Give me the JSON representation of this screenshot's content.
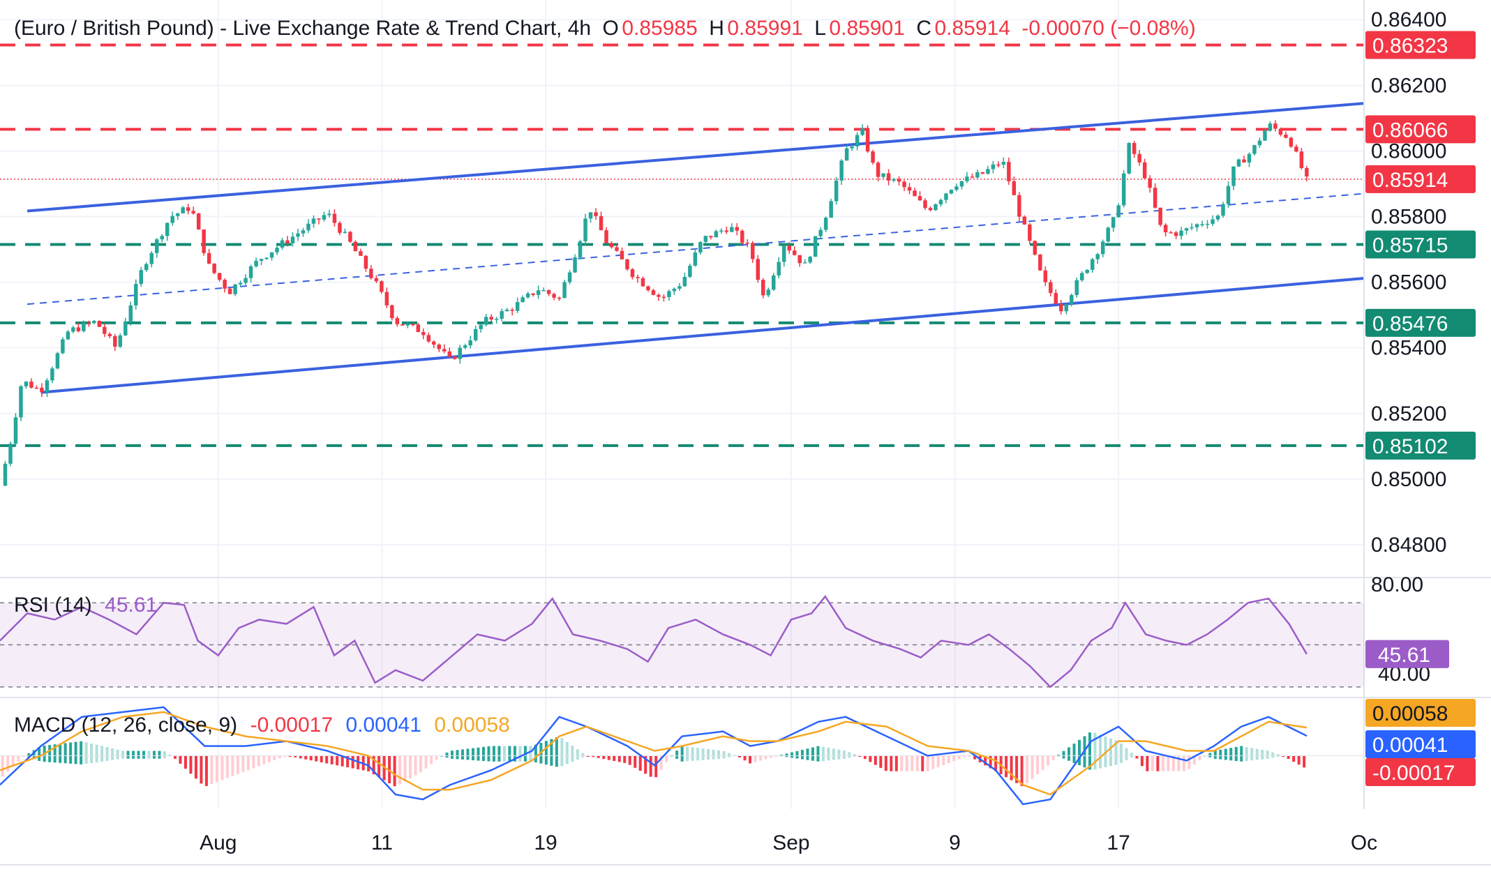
{
  "header": {
    "symbol": "(Euro / British Pound) - Live Exchange Rate & Trend Chart, 4h",
    "open_label": "O",
    "open": "0.85985",
    "high_label": "H",
    "high": "0.85991",
    "low_label": "L",
    "low": "0.85901",
    "close_label": "C",
    "close": "0.85914",
    "change": "-0.00070 (−0.08%)"
  },
  "colors": {
    "up": "#26a69a",
    "down": "#f23645",
    "red_level": "#f23645",
    "green_level": "#138a72",
    "channel": "#3a61e0",
    "rsi": "#9c5cc8",
    "macd_line": "#2962ff",
    "signal_line": "#f5a623",
    "axis_text": "#131722",
    "current_price_badge": "#f23645",
    "rsi_badge": "#9c5cc8"
  },
  "chart_data": [
    {
      "type": "candlestick",
      "timeframe": "4h",
      "y_ticks": [
        "0.86400",
        "0.86200",
        "0.86000",
        "0.85800",
        "0.85600",
        "0.85400",
        "0.85200",
        "0.85000",
        "0.84800"
      ],
      "ylim": [
        0.847,
        0.8646
      ],
      "x_ticks": [
        {
          "label": "Aug",
          "x": 0.16
        },
        {
          "label": "11",
          "x": 0.28
        },
        {
          "label": "19",
          "x": 0.4
        },
        {
          "label": "Sep",
          "x": 0.58
        },
        {
          "label": "9",
          "x": 0.7
        },
        {
          "label": "17",
          "x": 0.82
        },
        {
          "label": "Oc",
          "x": 1.0
        }
      ],
      "xlim": [
        0,
        1
      ],
      "price_path": [
        [
          0.0,
          0.8498
        ],
        [
          0.008,
          0.8512
        ],
        [
          0.016,
          0.853
        ],
        [
          0.03,
          0.8527
        ],
        [
          0.05,
          0.8545
        ],
        [
          0.07,
          0.8548
        ],
        [
          0.085,
          0.854
        ],
        [
          0.105,
          0.8565
        ],
        [
          0.125,
          0.858
        ],
        [
          0.14,
          0.8583
        ],
        [
          0.153,
          0.8565
        ],
        [
          0.168,
          0.8557
        ],
        [
          0.19,
          0.8567
        ],
        [
          0.215,
          0.8574
        ],
        [
          0.24,
          0.8581
        ],
        [
          0.255,
          0.8573
        ],
        [
          0.275,
          0.856
        ],
        [
          0.29,
          0.8548
        ],
        [
          0.31,
          0.8545
        ],
        [
          0.33,
          0.8536
        ],
        [
          0.355,
          0.8548
        ],
        [
          0.375,
          0.8552
        ],
        [
          0.395,
          0.8558
        ],
        [
          0.41,
          0.8555
        ],
        [
          0.425,
          0.8573
        ],
        [
          0.432,
          0.8583
        ],
        [
          0.445,
          0.8572
        ],
        [
          0.465,
          0.8562
        ],
        [
          0.485,
          0.8555
        ],
        [
          0.5,
          0.856
        ],
        [
          0.515,
          0.8573
        ],
        [
          0.535,
          0.8577
        ],
        [
          0.55,
          0.857
        ],
        [
          0.56,
          0.8555
        ],
        [
          0.575,
          0.8572
        ],
        [
          0.59,
          0.8565
        ],
        [
          0.605,
          0.858
        ],
        [
          0.62,
          0.86
        ],
        [
          0.632,
          0.8606
        ],
        [
          0.642,
          0.8593
        ],
        [
          0.66,
          0.859
        ],
        [
          0.68,
          0.8582
        ],
        [
          0.7,
          0.859
        ],
        [
          0.72,
          0.8593
        ],
        [
          0.735,
          0.8597
        ],
        [
          0.748,
          0.858
        ],
        [
          0.765,
          0.856
        ],
        [
          0.778,
          0.8552
        ],
        [
          0.79,
          0.856
        ],
        [
          0.805,
          0.857
        ],
        [
          0.818,
          0.858
        ],
        [
          0.828,
          0.8602
        ],
        [
          0.84,
          0.8592
        ],
        [
          0.852,
          0.8575
        ],
        [
          0.865,
          0.8575
        ],
        [
          0.88,
          0.8578
        ],
        [
          0.893,
          0.858
        ],
        [
          0.905,
          0.8595
        ],
        [
          0.918,
          0.86
        ],
        [
          0.93,
          0.8608
        ],
        [
          0.945,
          0.8604
        ],
        [
          0.958,
          0.8591
        ]
      ],
      "current_price": 0.85914,
      "levels": {
        "resistance": [
          0.86323,
          0.86066
        ],
        "support": [
          0.85715,
          0.85476,
          0.85102
        ]
      },
      "channel": {
        "upper": [
          [
            0.02,
            0.85817
          ],
          [
            1.0,
            0.86145
          ]
        ],
        "lower": [
          [
            0.03,
            0.85264
          ],
          [
            1.0,
            0.85612
          ]
        ],
        "middle": [
          [
            0.02,
            0.85533
          ],
          [
            1.0,
            0.8587
          ]
        ]
      },
      "price_badges": [
        "0.86323",
        "0.86066",
        "0.85914",
        "0.85715",
        "0.85476",
        "0.85102"
      ]
    },
    {
      "type": "line",
      "name": "RSI (14)",
      "label": "RSI (14)",
      "value": "45.61",
      "ylim": [
        25,
        82
      ],
      "y_ticks": [
        "80.00"
      ],
      "hidden_tick": "40.00",
      "bands": [
        70,
        50,
        30
      ],
      "values": [
        [
          0.0,
          52
        ],
        [
          0.02,
          65
        ],
        [
          0.04,
          62
        ],
        [
          0.06,
          68
        ],
        [
          0.08,
          62
        ],
        [
          0.1,
          55
        ],
        [
          0.12,
          70
        ],
        [
          0.135,
          69
        ],
        [
          0.145,
          52
        ],
        [
          0.16,
          45
        ],
        [
          0.175,
          58
        ],
        [
          0.19,
          62
        ],
        [
          0.21,
          60
        ],
        [
          0.23,
          68
        ],
        [
          0.245,
          45
        ],
        [
          0.26,
          52
        ],
        [
          0.275,
          32
        ],
        [
          0.29,
          38
        ],
        [
          0.31,
          33
        ],
        [
          0.33,
          44
        ],
        [
          0.35,
          55
        ],
        [
          0.37,
          52
        ],
        [
          0.39,
          60
        ],
        [
          0.405,
          72
        ],
        [
          0.42,
          55
        ],
        [
          0.44,
          52
        ],
        [
          0.46,
          48
        ],
        [
          0.475,
          42
        ],
        [
          0.49,
          58
        ],
        [
          0.51,
          62
        ],
        [
          0.53,
          55
        ],
        [
          0.55,
          50
        ],
        [
          0.565,
          45
        ],
        [
          0.58,
          62
        ],
        [
          0.595,
          65
        ],
        [
          0.605,
          73
        ],
        [
          0.62,
          58
        ],
        [
          0.64,
          52
        ],
        [
          0.66,
          48
        ],
        [
          0.675,
          44
        ],
        [
          0.69,
          52
        ],
        [
          0.71,
          50
        ],
        [
          0.725,
          55
        ],
        [
          0.74,
          48
        ],
        [
          0.755,
          40
        ],
        [
          0.77,
          30
        ],
        [
          0.785,
          38
        ],
        [
          0.8,
          52
        ],
        [
          0.815,
          58
        ],
        [
          0.825,
          70
        ],
        [
          0.84,
          55
        ],
        [
          0.855,
          52
        ],
        [
          0.87,
          50
        ],
        [
          0.885,
          55
        ],
        [
          0.9,
          62
        ],
        [
          0.915,
          70
        ],
        [
          0.93,
          72
        ],
        [
          0.945,
          60
        ],
        [
          0.958,
          45.61
        ]
      ]
    },
    {
      "type": "line",
      "name": "MACD (12, 26, close, 9)",
      "label": "MACD (12, 26, close, 9)",
      "histogram": "-0.00017",
      "macd": "0.00041",
      "signal": "0.00058",
      "ylim": [
        -0.0011,
        0.0012
      ],
      "macd_values": [
        [
          0.0,
          -0.0006
        ],
        [
          0.03,
          0.0002
        ],
        [
          0.06,
          0.0008
        ],
        [
          0.09,
          0.0009
        ],
        [
          0.12,
          0.001
        ],
        [
          0.15,
          0.0002
        ],
        [
          0.18,
          0.0002
        ],
        [
          0.21,
          0.0003
        ],
        [
          0.24,
          0.0001
        ],
        [
          0.27,
          -0.0002
        ],
        [
          0.29,
          -0.0008
        ],
        [
          0.31,
          -0.0009
        ],
        [
          0.33,
          -0.0006
        ],
        [
          0.36,
          -0.0003
        ],
        [
          0.39,
          0.0001
        ],
        [
          0.41,
          0.0008
        ],
        [
          0.43,
          0.0006
        ],
        [
          0.46,
          0.0002
        ],
        [
          0.48,
          -0.0002
        ],
        [
          0.5,
          0.0004
        ],
        [
          0.53,
          0.0005
        ],
        [
          0.55,
          0.0002
        ],
        [
          0.57,
          0.0003
        ],
        [
          0.6,
          0.0007
        ],
        [
          0.62,
          0.0008
        ],
        [
          0.65,
          0.0004
        ],
        [
          0.68,
          0.0
        ],
        [
          0.71,
          0.0001
        ],
        [
          0.73,
          -0.0003
        ],
        [
          0.75,
          -0.001
        ],
        [
          0.77,
          -0.0009
        ],
        [
          0.8,
          0.0003
        ],
        [
          0.82,
          0.0006
        ],
        [
          0.84,
          0.0001
        ],
        [
          0.87,
          -0.0001
        ],
        [
          0.89,
          0.0002
        ],
        [
          0.91,
          0.0006
        ],
        [
          0.93,
          0.0008
        ],
        [
          0.958,
          0.00041
        ]
      ],
      "signal_values": [
        [
          0.0,
          -0.0003
        ],
        [
          0.03,
          0.0
        ],
        [
          0.06,
          0.0005
        ],
        [
          0.09,
          0.0008
        ],
        [
          0.12,
          0.0009
        ],
        [
          0.15,
          0.0006
        ],
        [
          0.18,
          0.0004
        ],
        [
          0.21,
          0.0003
        ],
        [
          0.24,
          0.0002
        ],
        [
          0.27,
          0.0
        ],
        [
          0.29,
          -0.0004
        ],
        [
          0.31,
          -0.0007
        ],
        [
          0.33,
          -0.0007
        ],
        [
          0.36,
          -0.0005
        ],
        [
          0.39,
          -0.0001
        ],
        [
          0.41,
          0.0004
        ],
        [
          0.43,
          0.0006
        ],
        [
          0.46,
          0.0003
        ],
        [
          0.48,
          0.0001
        ],
        [
          0.5,
          0.0002
        ],
        [
          0.53,
          0.0004
        ],
        [
          0.55,
          0.0003
        ],
        [
          0.57,
          0.0003
        ],
        [
          0.6,
          0.0005
        ],
        [
          0.62,
          0.0007
        ],
        [
          0.65,
          0.0006
        ],
        [
          0.68,
          0.0002
        ],
        [
          0.71,
          0.0001
        ],
        [
          0.73,
          -0.0001
        ],
        [
          0.75,
          -0.0006
        ],
        [
          0.77,
          -0.0008
        ],
        [
          0.8,
          -0.0002
        ],
        [
          0.82,
          0.0003
        ],
        [
          0.84,
          0.0003
        ],
        [
          0.87,
          0.0001
        ],
        [
          0.89,
          0.0001
        ],
        [
          0.91,
          0.0004
        ],
        [
          0.93,
          0.0007
        ],
        [
          0.958,
          0.00058
        ]
      ]
    }
  ]
}
